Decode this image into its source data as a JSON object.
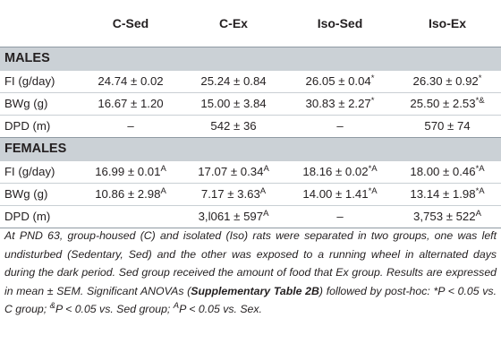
{
  "table": {
    "header": [
      "",
      "C-Sed",
      "C-Ex",
      "Iso-Sed",
      "Iso-Ex"
    ],
    "sections": [
      {
        "title": "MALES",
        "rows": [
          {
            "label": "FI (g/day)",
            "cells": [
              {
                "value": "24.74 ± 0.02",
                "sup": ""
              },
              {
                "value": "25.24 ± 0.84",
                "sup": ""
              },
              {
                "value": "26.05 ± 0.04",
                "sup": "*"
              },
              {
                "value": "26.30 ± 0.92",
                "sup": "*"
              }
            ]
          },
          {
            "label": "BWg (g)",
            "cells": [
              {
                "value": "16.67 ± 1.20",
                "sup": ""
              },
              {
                "value": "15.00 ± 3.84",
                "sup": ""
              },
              {
                "value": "30.83 ± 2.27",
                "sup": "*"
              },
              {
                "value": "25.50 ± 2.53",
                "sup": "*&"
              }
            ]
          },
          {
            "label": "DPD (m)",
            "cells": [
              {
                "value": "–",
                "sup": ""
              },
              {
                "value": "542 ± 36",
                "sup": ""
              },
              {
                "value": "–",
                "sup": ""
              },
              {
                "value": "570 ± 74",
                "sup": ""
              }
            ]
          }
        ]
      },
      {
        "title": "FEMALES",
        "rows": [
          {
            "label": "FI (g/day)",
            "cells": [
              {
                "value": "16.99 ± 0.01",
                "sup": "A"
              },
              {
                "value": "17.07 ± 0.34",
                "sup": "A"
              },
              {
                "value": "18.16 ± 0.02",
                "sup": "*A"
              },
              {
                "value": "18.00 ± 0.46",
                "sup": "*A"
              }
            ]
          },
          {
            "label": "BWg (g)",
            "cells": [
              {
                "value": "10.86 ± 2.98",
                "sup": "A"
              },
              {
                "value": "7.17 ± 3.63",
                "sup": "A"
              },
              {
                "value": "14.00 ± 1.41",
                "sup": "*A"
              },
              {
                "value": "13.14 ± 1.98",
                "sup": "*A"
              }
            ]
          },
          {
            "label": "DPD (m)",
            "cells": [
              {
                "value": "",
                "sup": ""
              },
              {
                "value": "3,l061 ± 597",
                "sup": "A"
              },
              {
                "value": "–",
                "sup": ""
              },
              {
                "value": "3,753 ± 522",
                "sup": "A"
              }
            ]
          }
        ]
      }
    ]
  },
  "footnote": {
    "p1": "At PND 63, group-housed (C) and isolated (Iso) rats were separated in two groups, one was left undisturbed (Sedentary, Sed) and the other was exposed to a running wheel in alternated days during the dark period. Sed group received the amount of food that Ex group. Results are expressed in mean ± SEM. Significant ANOVAs (",
    "bold": "Supplementary Table 2B",
    "p2": ") followed by post-hoc: *P < 0.05 vs. C group; ",
    "sup1": "&",
    "p3": "P < 0.05 vs. Sed group; ",
    "sup2": "A",
    "p4": "P < 0.05 vs. Sex."
  }
}
